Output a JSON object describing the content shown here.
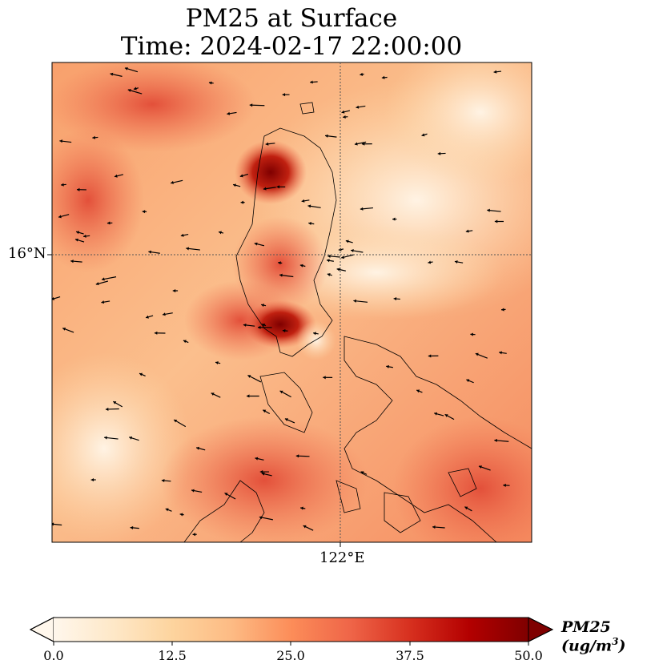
{
  "title": {
    "line1": "PM25 at Surface",
    "line2": "Time: 2024-02-17 22:00:00"
  },
  "axes": {
    "lat_tick": "16°N",
    "lon_tick": "122°E"
  },
  "colorbar": {
    "label_prefix": "PM25 (ug/m",
    "label_sup": "3",
    "label_suffix": ")",
    "ticks": [
      "0.0",
      "12.5",
      "25.0",
      "37.5",
      "50.0"
    ],
    "range": [
      0,
      50
    ],
    "extend": "both",
    "colormap": [
      "#fff7ec",
      "#fee8c8",
      "#fdd49e",
      "#fdbb84",
      "#fc8d59",
      "#ef6548",
      "#d7301f",
      "#b30000",
      "#7f0000"
    ]
  },
  "map": {
    "gridlines": "dotted",
    "coastline_color": "#000000",
    "wind_vectors": "black"
  }
}
